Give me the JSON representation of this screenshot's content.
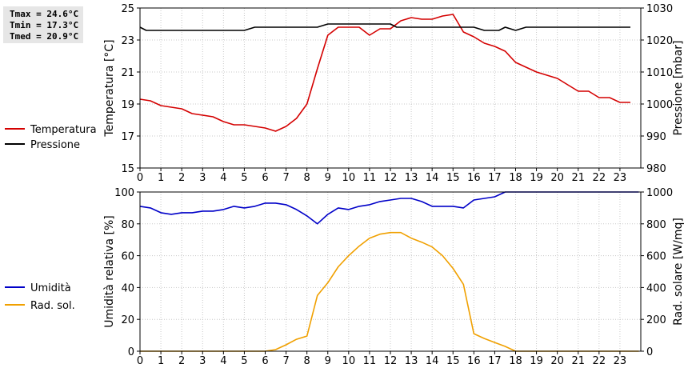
{
  "stats": [
    "Tmax = 24.6°C",
    "Tmin = 17.3°C",
    "Tmed = 20.9°C"
  ],
  "chart_data": [
    {
      "type": "line",
      "xlabel": "",
      "x_ticks": [
        "0",
        "1",
        "2",
        "3",
        "4",
        "5",
        "6",
        "7",
        "8",
        "9",
        "10",
        "11",
        "12",
        "13",
        "14",
        "15",
        "16",
        "17",
        "18",
        "19",
        "20",
        "21",
        "22",
        "23"
      ],
      "xlim": [
        0,
        24
      ],
      "ylabel": "Temperatura [°C]",
      "ylim": [
        15,
        25
      ],
      "y_ticks": [
        15,
        17,
        19,
        21,
        23,
        25
      ],
      "ylabel_right": "Pressione [mbar]",
      "ylim_right": [
        980,
        1030
      ],
      "y_ticks_right": [
        980,
        990,
        1000,
        1010,
        1020,
        1030
      ],
      "grid": true,
      "legend_position": "left",
      "series": [
        {
          "name": "Temperatura",
          "color": "#d40000",
          "axis": "left",
          "x": [
            0,
            0.5,
            1,
            1.5,
            2,
            2.5,
            3,
            3.5,
            4,
            4.5,
            5,
            5.5,
            6,
            6.5,
            7,
            7.5,
            8,
            8.5,
            9,
            9.5,
            10,
            10.5,
            11,
            11.5,
            12,
            12.5,
            13,
            13.5,
            14,
            14.5,
            15,
            15.5,
            16,
            16.5,
            17,
            17.5,
            18,
            18.5,
            19,
            19.5,
            20,
            20.5,
            21,
            21.5,
            22,
            22.5,
            23,
            23.5
          ],
          "values": [
            19.3,
            19.2,
            18.9,
            18.8,
            18.7,
            18.4,
            18.3,
            18.2,
            17.9,
            17.7,
            17.7,
            17.6,
            17.5,
            17.3,
            17.6,
            18.1,
            19.0,
            21.2,
            23.3,
            23.8,
            23.8,
            23.8,
            23.3,
            23.7,
            23.7,
            24.2,
            24.4,
            24.3,
            24.3,
            24.5,
            24.6,
            23.5,
            23.2,
            22.8,
            22.6,
            22.3,
            21.6,
            21.3,
            21.0,
            20.8,
            20.6,
            20.2,
            19.8,
            19.8,
            19.4,
            19.4,
            19.1,
            19.1
          ]
        },
        {
          "name": "Pressione",
          "color": "#000000",
          "axis": "right",
          "x": [
            0,
            0.3,
            1,
            5,
            5.5,
            8.5,
            9,
            12,
            12.3,
            16,
            16.5,
            17.2,
            17.5,
            18,
            18.5,
            23.5
          ],
          "values": [
            1024,
            1023,
            1023,
            1023,
            1024,
            1024,
            1025,
            1025,
            1024,
            1024,
            1023,
            1023,
            1024,
            1023,
            1024,
            1024
          ]
        }
      ]
    },
    {
      "type": "line",
      "xlabel": "",
      "x_ticks": [
        "0",
        "1",
        "2",
        "3",
        "4",
        "5",
        "6",
        "7",
        "8",
        "9",
        "10",
        "11",
        "12",
        "13",
        "14",
        "15",
        "16",
        "17",
        "18",
        "19",
        "20",
        "21",
        "22",
        "23"
      ],
      "xlim": [
        0,
        24
      ],
      "ylabel": "Umidità relativa [%]",
      "ylim": [
        0,
        100
      ],
      "y_ticks": [
        0,
        20,
        40,
        60,
        80,
        100
      ],
      "ylabel_right": "Rad. solare [W/mq]",
      "ylim_right": [
        0,
        1000
      ],
      "y_ticks_right": [
        0,
        200,
        400,
        600,
        800,
        1000
      ],
      "grid": true,
      "legend_position": "left",
      "series": [
        {
          "name": "Umidità",
          "color": "#0000c8",
          "axis": "left",
          "x": [
            0,
            0.5,
            1,
            1.5,
            2,
            2.5,
            3,
            3.5,
            4,
            4.5,
            5,
            5.5,
            6,
            6.5,
            7,
            7.5,
            8,
            8.5,
            9,
            9.5,
            10,
            10.5,
            11,
            11.5,
            12,
            12.5,
            13,
            13.5,
            14,
            14.5,
            15,
            15.5,
            16,
            16.5,
            17,
            17.5,
            18,
            23.9
          ],
          "values": [
            91,
            90,
            87,
            86,
            87,
            87,
            88,
            88,
            89,
            91,
            90,
            91,
            93,
            93,
            92,
            89,
            85,
            80,
            86,
            90,
            89,
            91,
            92,
            94,
            95,
            96,
            96,
            94,
            91,
            91,
            91,
            90,
            95,
            96,
            97,
            100,
            100,
            100
          ]
        },
        {
          "name": "Rad. sol.",
          "color": "#f0a000",
          "axis": "right",
          "x": [
            0,
            6,
            6.5,
            7,
            7.5,
            8,
            8.5,
            9,
            9.5,
            10,
            10.5,
            11,
            11.5,
            12,
            12.5,
            13,
            13.5,
            14,
            14.5,
            15,
            15.5,
            16,
            16.5,
            17,
            17.5,
            18,
            23.9
          ],
          "values": [
            0,
            0,
            10,
            40,
            75,
            95,
            350,
            430,
            530,
            600,
            660,
            710,
            735,
            745,
            745,
            710,
            685,
            655,
            600,
            520,
            420,
            110,
            80,
            55,
            30,
            0,
            0
          ]
        }
      ]
    }
  ]
}
